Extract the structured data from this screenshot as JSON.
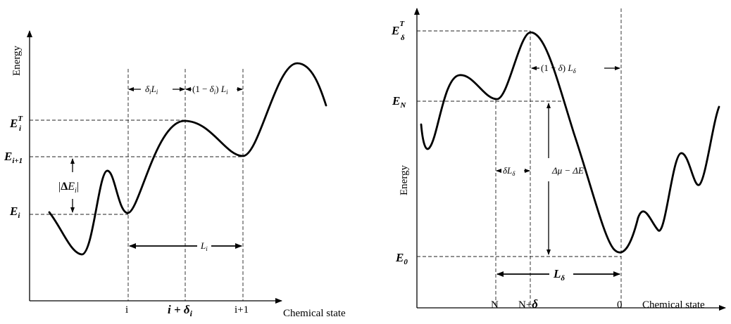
{
  "left_panel": {
    "y_axis_label": "Energy",
    "x_axis_label": "Chemical state",
    "x_ticks": {
      "i": "i",
      "i_delta_main": "i + δ",
      "i_delta_sub": "i",
      "i_plus_1": "i+1"
    },
    "levels": {
      "ET_main": "E",
      "ET_sup": "T",
      "ET_sub": "i",
      "Ei1_main": "E",
      "Ei1_sub": "i+1",
      "Ei_main": "E",
      "Ei_sub": "i"
    },
    "delta_E": {
      "open": "|",
      "delta": "Δ",
      "E": "E",
      "sub": "i",
      "close": "|"
    },
    "delta_L": {
      "d": "δ",
      "d_sub": "i",
      "L": "L",
      "L_sub": "i"
    },
    "one_minus_delta_L": {
      "pre": "(1 − ",
      "d": "δ",
      "d_sub": "i",
      "post": ") ",
      "L": "L",
      "L_sub": "i"
    },
    "L_label": {
      "L": "L",
      "sub": "i"
    }
  },
  "right_panel": {
    "y_axis_label": "Energy",
    "x_axis_label": "Chemical state",
    "x_ticks": {
      "N": "N",
      "N_delta_pre": "N+",
      "N_delta_sym": "δ",
      "zero": "0"
    },
    "levels": {
      "ET_main": "E",
      "ET_sup": "T",
      "ET_sub": "δ",
      "EN_main": "E",
      "EN_sub": "N",
      "E0_main": "E",
      "E0_sub": "0"
    },
    "one_minus_delta_L": {
      "pre": "(1 − ",
      "d": "δ",
      "post": ") ",
      "L": "L",
      "L_sub": "δ"
    },
    "delta_L": {
      "d": "δ",
      "L": "L",
      "L_sub": "δ"
    },
    "delta_mu": {
      "text": "Δμ − ΔE"
    },
    "L_label": {
      "L": "L",
      "sub": "δ"
    }
  }
}
